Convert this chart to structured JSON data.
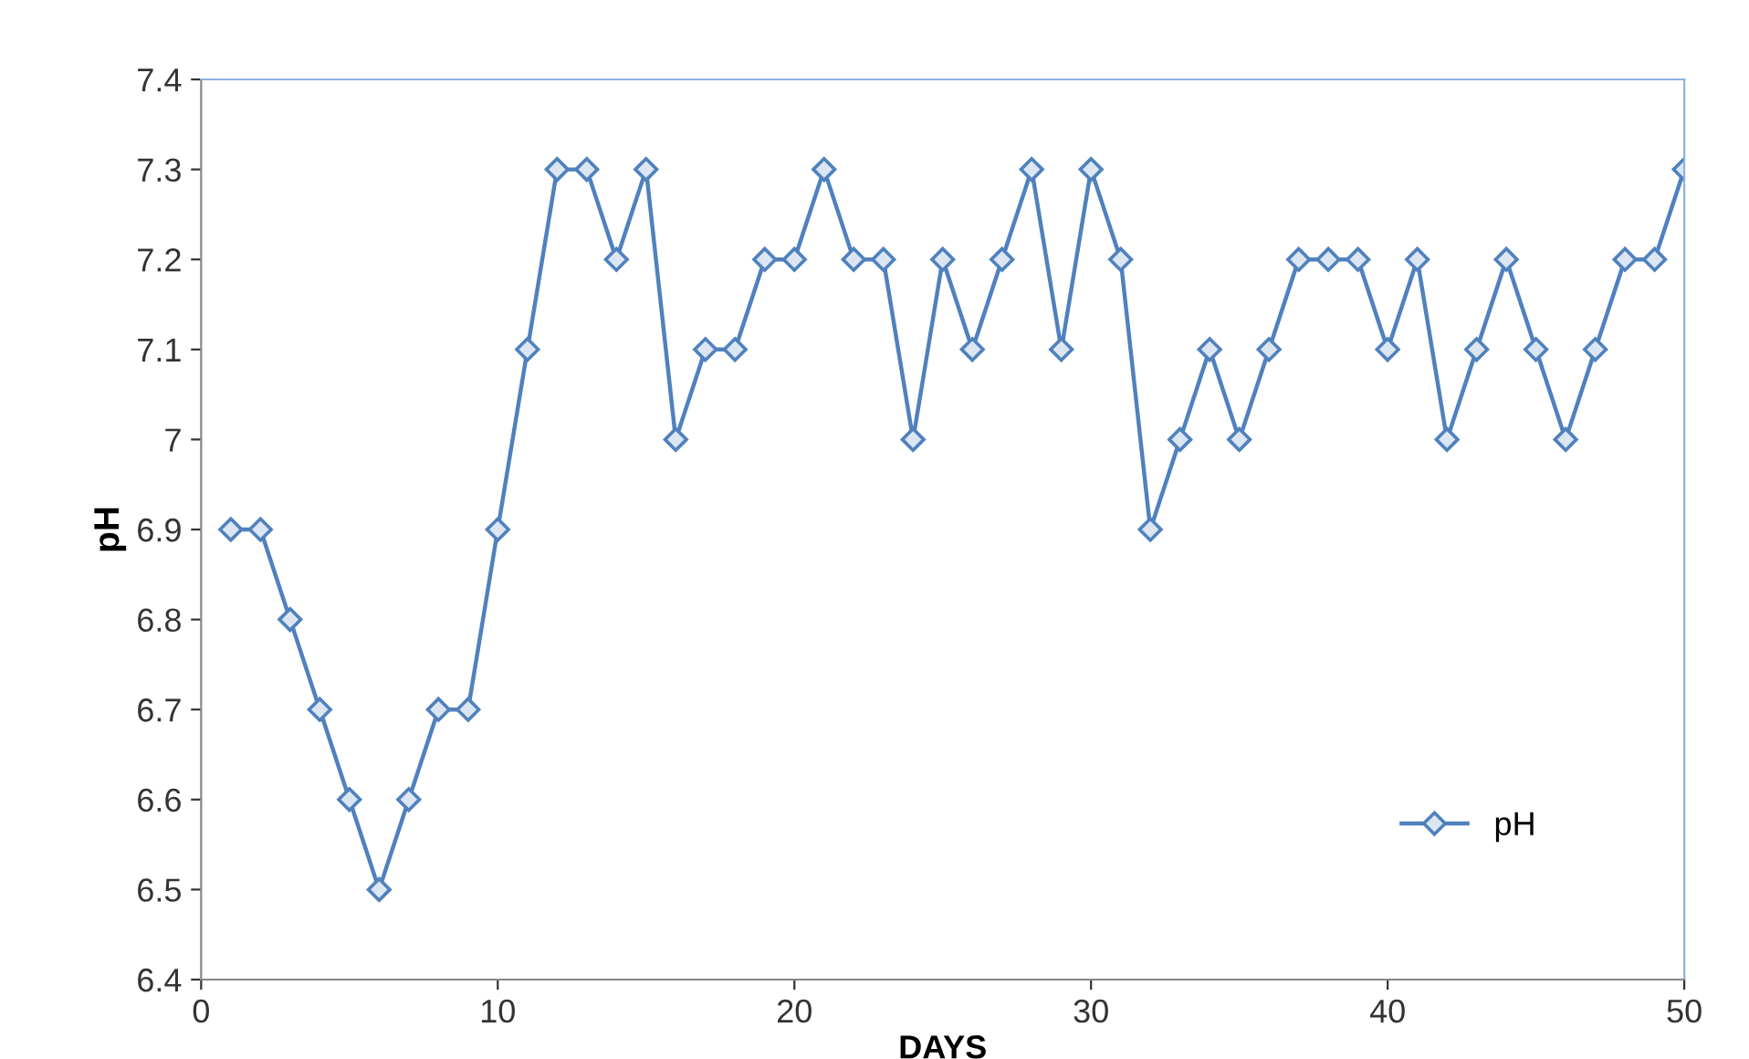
{
  "chart_data": {
    "type": "line",
    "xlabel": "DAYS",
    "ylabel": "pH",
    "x": [
      1,
      2,
      3,
      4,
      5,
      6,
      7,
      8,
      9,
      10,
      11,
      12,
      13,
      14,
      15,
      16,
      17,
      18,
      19,
      20,
      21,
      22,
      23,
      24,
      25,
      26,
      27,
      28,
      29,
      30,
      31,
      32,
      33,
      34,
      35,
      36,
      37,
      38,
      39,
      40,
      41,
      42,
      43,
      44,
      45,
      46,
      47,
      48,
      49,
      50
    ],
    "series": [
      {
        "name": "pH",
        "color": "#4f81bd",
        "values": [
          6.9,
          6.9,
          6.8,
          6.7,
          6.6,
          6.5,
          6.6,
          6.7,
          6.7,
          6.9,
          7.1,
          7.3,
          7.3,
          7.2,
          7.3,
          7.0,
          7.1,
          7.1,
          7.2,
          7.2,
          7.3,
          7.2,
          7.2,
          7.0,
          7.2,
          7.1,
          7.2,
          7.3,
          7.1,
          7.3,
          7.2,
          6.9,
          7.0,
          7.1,
          7.0,
          7.1,
          7.2,
          7.2,
          7.2,
          7.1,
          7.2,
          7.0,
          7.1,
          7.2,
          7.1,
          7.0,
          7.1,
          7.2,
          7.2,
          7.3
        ]
      }
    ],
    "xlim": [
      0,
      50
    ],
    "xticks": [
      0,
      10,
      20,
      30,
      40,
      50
    ],
    "ylim": [
      6.4,
      7.4
    ],
    "yticks": [
      6.4,
      6.5,
      6.6,
      6.7,
      6.8,
      6.9,
      7,
      7.1,
      7.2,
      7.3,
      7.4
    ],
    "marker": "diamond",
    "legend": "bottom right",
    "grid": false
  }
}
